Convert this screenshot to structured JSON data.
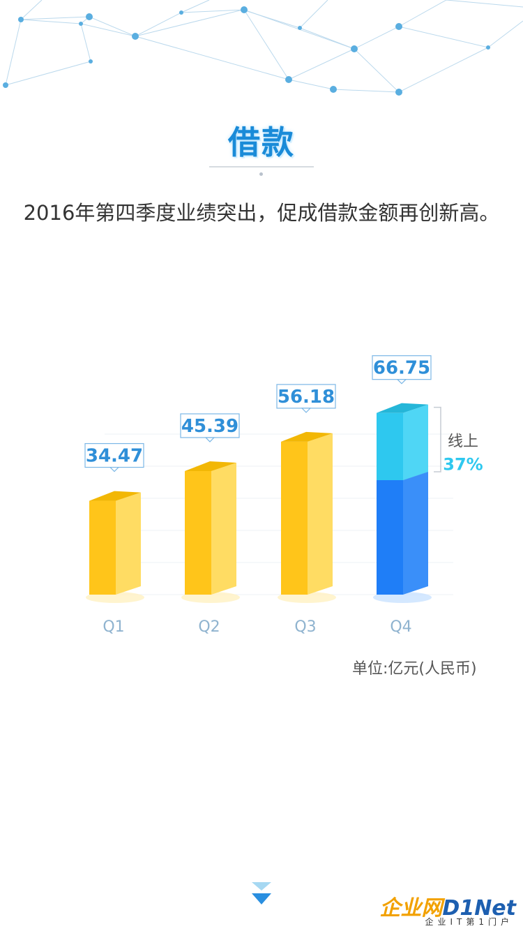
{
  "page": {
    "title": "借款",
    "subtitle": "2016年第四季度业绩突出，促成借款金额再创新高。",
    "unit_label": "单位:亿元(人民币)"
  },
  "chart_data": {
    "type": "bar",
    "title": "",
    "categories": [
      "Q1",
      "Q2",
      "Q3",
      "Q4"
    ],
    "values": [
      34.47,
      45.39,
      56.18,
      66.75
    ],
    "value_labels": [
      "34.47",
      "45.39",
      "56.18",
      "66.75"
    ],
    "q4_online_share": 0.37,
    "annotation": {
      "label": "线上",
      "value_text": "37%"
    },
    "colors": {
      "bar": "#ffc51a",
      "q4_offline": "#1f7ef7",
      "q4_online": "#2ec8ef",
      "label_text": "#2f8fd8",
      "axis_text": "#8fb3cf"
    },
    "grid": true
  },
  "watermark": {
    "brand_cn": "企业网",
    "brand_en": "D1Net",
    "tagline": "企业IT第1门户"
  }
}
